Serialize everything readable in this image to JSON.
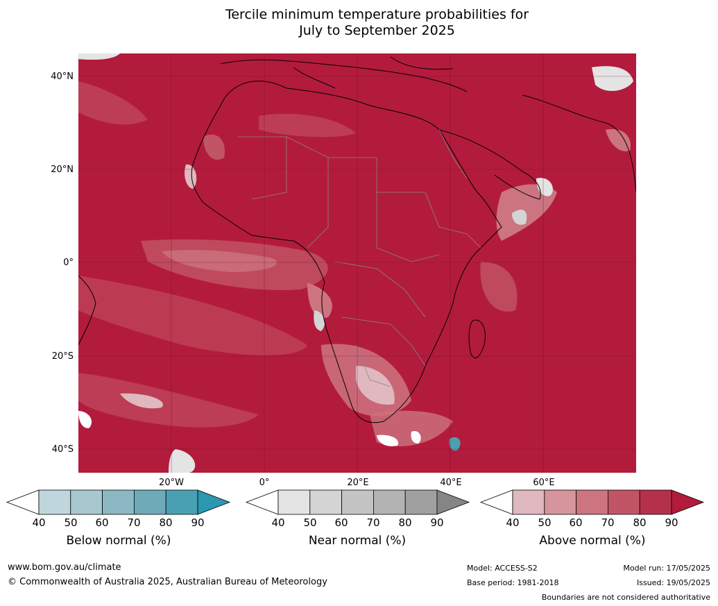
{
  "title_line1": "Tercile minimum temperature probabilities for",
  "title_line2": "July to September 2025",
  "lat_labels": [
    "40°N",
    "20°N",
    "0°",
    "20°S",
    "40°S"
  ],
  "lon_labels": [
    "20°W",
    "0°",
    "20°E",
    "40°E",
    "60°E"
  ],
  "colorbars": [
    {
      "label": "Below normal (%)",
      "ticks": [
        "40",
        "50",
        "60",
        "70",
        "80",
        "90"
      ],
      "colors": [
        "#bfd6dc",
        "#a8c8cf",
        "#8bb8c3",
        "#6eaab8",
        "#4aa0b3"
      ],
      "extend_low": "#ffffff",
      "extend_high": "#2b97b1"
    },
    {
      "label": "Near normal (%)",
      "ticks": [
        "40",
        "50",
        "60",
        "70",
        "80",
        "90"
      ],
      "colors": [
        "#e4e4e4",
        "#d4d4d4",
        "#c4c4c4",
        "#b3b3b3",
        "#a0a0a0"
      ],
      "extend_low": "#ffffff",
      "extend_high": "#858585"
    },
    {
      "label": "Above normal (%)",
      "ticks": [
        "40",
        "50",
        "60",
        "70",
        "80",
        "90"
      ],
      "colors": [
        "#e0b8bf",
        "#d6949d",
        "#cc7480",
        "#c25565",
        "#b5314b"
      ],
      "extend_low": "#ffffff",
      "extend_high": "#b31b3c"
    }
  ],
  "footer": {
    "website": "www.bom.gov.au/climate",
    "copyright": "© Commonwealth of Australia 2025, Australian Bureau of Meteorology",
    "model": "Model: ACCESS-S2",
    "base_period": "Base period: 1981-2018",
    "model_run": "Model run: 17/05/2025",
    "issued": "Issued: 19/05/2025",
    "disclaimer": "Boundaries are not considered authoritative"
  },
  "colors": {
    "map_base": "#b31b3c"
  }
}
